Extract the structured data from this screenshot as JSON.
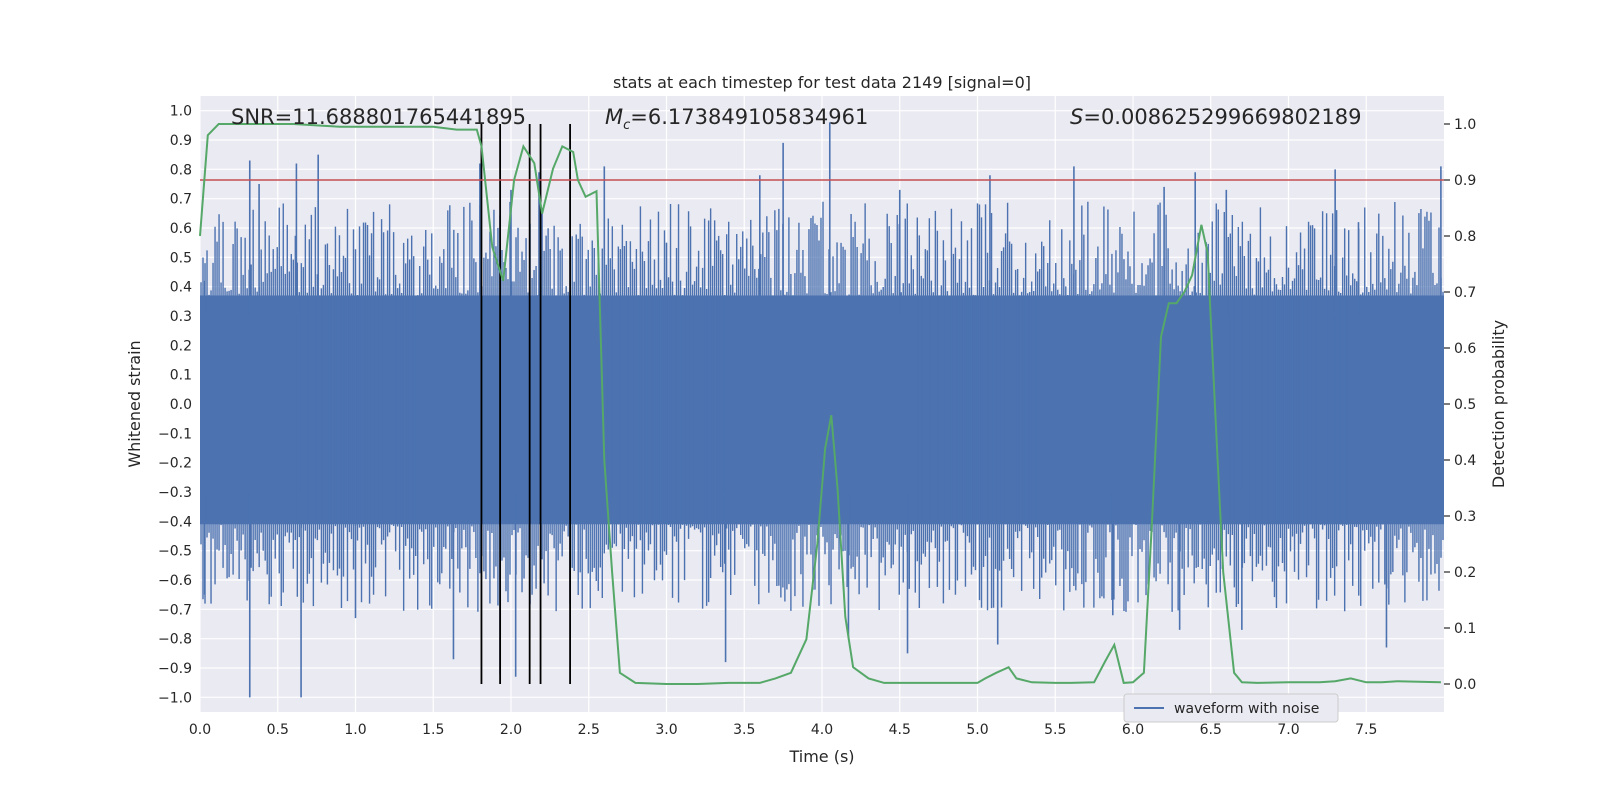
{
  "chart_data": {
    "type": "line",
    "title": "stats at each timestep for test data 2149 [signal=0]",
    "xlabel": "Time (s)",
    "ylabel_left": "Whitened strain",
    "ylabel_right": "Detection probability",
    "xlim": [
      0.0,
      8.0
    ],
    "ylim_left": [
      -1.05,
      1.05
    ],
    "ylim_right": [
      -0.05,
      1.05
    ],
    "x_ticks": [
      "0.0",
      "0.5",
      "1.0",
      "1.5",
      "2.0",
      "2.5",
      "3.0",
      "3.5",
      "4.0",
      "4.5",
      "5.0",
      "5.5",
      "6.0",
      "6.5",
      "7.0",
      "7.5"
    ],
    "x_tick_values": [
      0,
      0.5,
      1,
      1.5,
      2,
      2.5,
      3,
      3.5,
      4,
      4.5,
      5,
      5.5,
      6,
      6.5,
      7,
      7.5
    ],
    "y_left_ticks": [
      "1.0",
      "0.9",
      "0.8",
      "0.7",
      "0.6",
      "0.5",
      "0.4",
      "0.3",
      "0.2",
      "0.1",
      "0.0",
      "−0.1",
      "−0.2",
      "−0.3",
      "−0.4",
      "−0.5",
      "−0.6",
      "−0.7",
      "−0.8",
      "−0.9",
      "−1.0"
    ],
    "y_left_tick_values": [
      1.0,
      0.9,
      0.8,
      0.7,
      0.6,
      0.5,
      0.4,
      0.3,
      0.2,
      0.1,
      0.0,
      -0.1,
      -0.2,
      -0.3,
      -0.4,
      -0.5,
      -0.6,
      -0.7,
      -0.8,
      -0.9,
      -1.0
    ],
    "y_right_ticks": [
      "1.0",
      "0.9",
      "0.8",
      "0.7",
      "0.6",
      "0.5",
      "0.4",
      "0.3",
      "0.2",
      "0.1",
      "0.0"
    ],
    "y_right_tick_values": [
      1.0,
      0.9,
      0.8,
      0.7,
      0.6,
      0.5,
      0.4,
      0.3,
      0.2,
      0.1,
      0.0
    ],
    "annotations": {
      "snr": "SNR=11.688801765441895",
      "mc_symbol": "M",
      "mc_sub": "c",
      "mc_value": "=6.173849105834961",
      "s_symbol": "S",
      "s_value": "=0.008625299669802189"
    },
    "threshold_line": {
      "axis": "right",
      "value": 0.9,
      "color": "#c44e52"
    },
    "vertical_markers": [
      1.81,
      1.93,
      2.12,
      2.19,
      2.38
    ],
    "legend": [
      {
        "label": "waveform with noise",
        "color": "#4c72b0"
      }
    ],
    "series": [
      {
        "name": "waveform with noise",
        "axis": "left",
        "color": "#4c72b0",
        "style": "dense noise, range approx -1.0 to 0.96",
        "peaks_high": [
          [
            0.03,
            0.42
          ],
          [
            0.32,
            0.83
          ],
          [
            0.38,
            0.75
          ],
          [
            0.62,
            0.82
          ],
          [
            0.76,
            0.85
          ],
          [
            1.8,
            0.82
          ],
          [
            2.0,
            0.73
          ],
          [
            2.18,
            0.79
          ],
          [
            2.6,
            0.81
          ],
          [
            3.0,
            0.55
          ],
          [
            3.6,
            0.78
          ],
          [
            3.75,
            0.89
          ],
          [
            4.05,
            0.96
          ],
          [
            4.5,
            0.73
          ],
          [
            5.08,
            0.78
          ],
          [
            5.62,
            0.81
          ],
          [
            6.2,
            0.74
          ],
          [
            6.4,
            0.79
          ],
          [
            6.6,
            0.73
          ],
          [
            7.3,
            0.8
          ],
          [
            7.45,
            0.62
          ],
          [
            7.98,
            0.81
          ]
        ],
        "peaks_low": [
          [
            0.03,
            -0.65
          ],
          [
            0.32,
            -1.0
          ],
          [
            0.65,
            -1.0
          ],
          [
            1.0,
            -0.73
          ],
          [
            1.63,
            -0.87
          ],
          [
            1.93,
            -0.92
          ],
          [
            2.03,
            -0.93
          ],
          [
            2.38,
            -0.68
          ],
          [
            3.38,
            -0.88
          ],
          [
            4.17,
            -0.8
          ],
          [
            4.55,
            -0.85
          ],
          [
            5.13,
            -0.82
          ],
          [
            5.87,
            -0.72
          ],
          [
            6.3,
            -0.77
          ],
          [
            6.7,
            -0.77
          ],
          [
            7.63,
            -0.83
          ]
        ]
      },
      {
        "name": "detection probability",
        "axis": "right",
        "color": "#55a868",
        "x": [
          0.0,
          0.05,
          0.12,
          0.3,
          0.6,
          0.9,
          1.0,
          1.2,
          1.5,
          1.65,
          1.78,
          1.81,
          1.88,
          1.95,
          2.02,
          2.08,
          2.15,
          2.2,
          2.27,
          2.33,
          2.4,
          2.43,
          2.48,
          2.55,
          2.6,
          2.65,
          2.7,
          2.8,
          3.0,
          3.2,
          3.4,
          3.6,
          3.7,
          3.8,
          3.9,
          3.97,
          4.02,
          4.06,
          4.1,
          4.15,
          4.2,
          4.3,
          4.4,
          4.5,
          4.7,
          5.0,
          5.05,
          5.12,
          5.2,
          5.25,
          5.35,
          5.5,
          5.6,
          5.75,
          5.82,
          5.88,
          5.94,
          6.0,
          6.07,
          6.12,
          6.18,
          6.23,
          6.28,
          6.33,
          6.38,
          6.44,
          6.48,
          6.53,
          6.58,
          6.65,
          6.7,
          6.8,
          7.0,
          7.2,
          7.3,
          7.4,
          7.5,
          7.6,
          7.7,
          7.98
        ],
        "y": [
          0.8,
          0.98,
          1.0,
          1.0,
          1.0,
          0.995,
          0.995,
          0.995,
          0.995,
          0.99,
          0.99,
          0.96,
          0.78,
          0.72,
          0.9,
          0.96,
          0.93,
          0.84,
          0.92,
          0.96,
          0.95,
          0.9,
          0.87,
          0.88,
          0.4,
          0.2,
          0.02,
          0.002,
          0.0,
          0.0,
          0.002,
          0.002,
          0.01,
          0.02,
          0.08,
          0.25,
          0.42,
          0.48,
          0.35,
          0.12,
          0.03,
          0.01,
          0.002,
          0.002,
          0.002,
          0.002,
          0.01,
          0.02,
          0.03,
          0.01,
          0.003,
          0.002,
          0.002,
          0.003,
          0.04,
          0.07,
          0.002,
          0.003,
          0.02,
          0.28,
          0.62,
          0.68,
          0.68,
          0.7,
          0.73,
          0.82,
          0.77,
          0.48,
          0.2,
          0.02,
          0.003,
          0.002,
          0.003,
          0.003,
          0.005,
          0.01,
          0.003,
          0.003,
          0.005,
          0.003
        ]
      }
    ]
  }
}
